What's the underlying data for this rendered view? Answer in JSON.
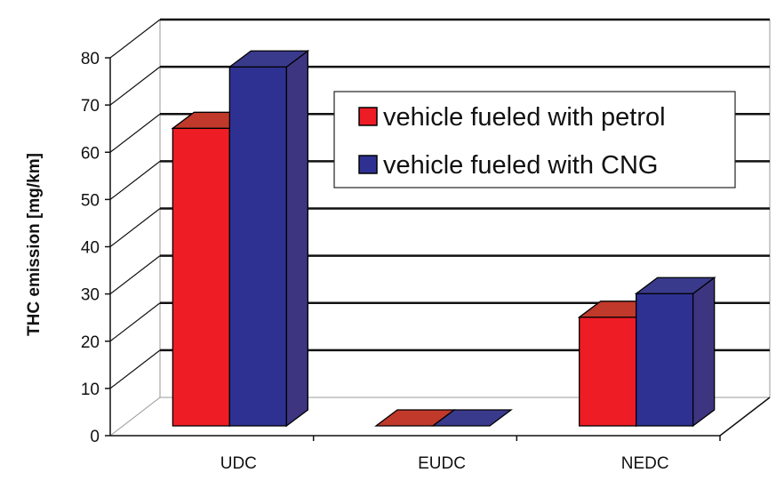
{
  "chart_data": {
    "type": "bar",
    "title": "",
    "xlabel": "",
    "ylabel": "THC emission [mg/km]",
    "categories": [
      "UDC",
      "EUDC",
      "NEDC"
    ],
    "ylim": [
      0,
      80
    ],
    "yticks": [
      "0",
      "10",
      "20",
      "30",
      "40",
      "50",
      "60",
      "70",
      "80"
    ],
    "grid": true,
    "three_d": true,
    "legend_position": "top-right",
    "series": [
      {
        "name": "vehicle fueled with petrol",
        "values": [
          63,
          0,
          23
        ],
        "color": "#ee1c25",
        "top_color": "#c0392b",
        "side_color": "#a01818"
      },
      {
        "name": "vehicle fueled with CNG",
        "values": [
          76,
          0,
          28
        ],
        "color": "#2e3192",
        "top_color": "#3a3a8c",
        "side_color": "#3d3580"
      }
    ]
  }
}
